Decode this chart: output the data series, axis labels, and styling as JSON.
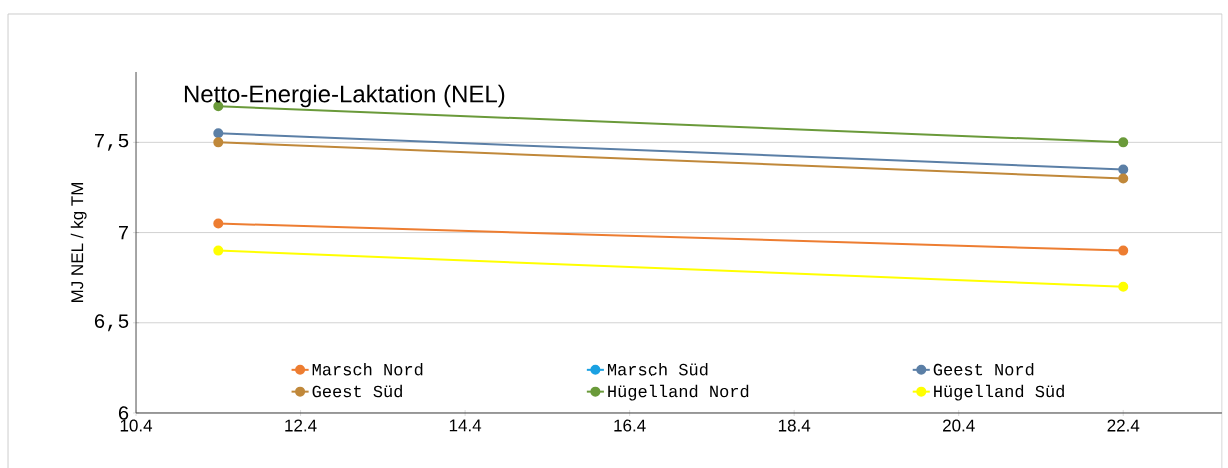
{
  "chart_data": {
    "type": "line",
    "title": "Netto-Energie-Laktation (NEL)",
    "ylabel": "MJ NEL / kg TM",
    "x": [
      11.4,
      22.4
    ],
    "series": [
      {
        "name": "Marsch Nord",
        "color": "#ed7d31",
        "values": [
          7.05,
          6.9
        ]
      },
      {
        "name": "Marsch Süd",
        "color": "#1ba1e2",
        "values": [
          null,
          null
        ]
      },
      {
        "name": "Geest Nord",
        "color": "#5b7fa6",
        "values": [
          7.55,
          7.35
        ]
      },
      {
        "name": "Geest Süd",
        "color": "#c0883a",
        "values": [
          7.5,
          7.3
        ]
      },
      {
        "name": "Hügelland Nord",
        "color": "#6a9a3a",
        "values": [
          7.7,
          7.5
        ]
      },
      {
        "name": "Hügelland Süd",
        "color": "#ffff00",
        "values": [
          6.9,
          6.7
        ]
      }
    ],
    "xlim": [
      10.4,
      23.6
    ],
    "xticks": [
      10.4,
      12.4,
      14.4,
      16.4,
      18.4,
      20.4,
      22.4
    ],
    "ylim": [
      6,
      7.89
    ],
    "yticks": [
      6,
      {
        "value": 6.5,
        "label": "6,5"
      },
      7,
      {
        "value": 7.5,
        "label": "7,5"
      }
    ],
    "grid": "y",
    "legend": "bottom",
    "marker": "circle",
    "line_style": "solid"
  }
}
